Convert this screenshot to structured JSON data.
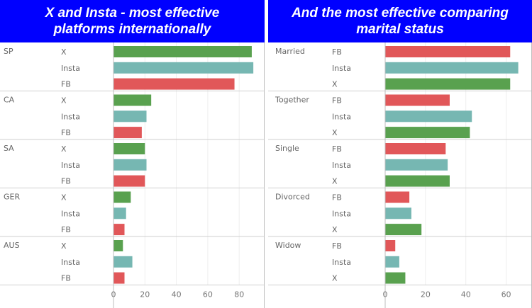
{
  "left_title": {
    "line1": "X and Insta - most effective",
    "line2": "platforms internationally"
  },
  "right_title": {
    "line1": "And the most effective comparing",
    "line2": "marital status"
  },
  "colors": {
    "X": "#59a14f",
    "Insta": "#76b7b2",
    "FB": "#e15759",
    "title_bg": "#0000ff"
  },
  "chart_data": [
    {
      "type": "bar",
      "orientation": "horizontal",
      "title": "X and Insta - most effective platforms internationally",
      "xlim": [
        0,
        93
      ],
      "ticks": [
        0,
        20,
        40,
        60,
        80
      ],
      "groups": [
        {
          "name": "SP",
          "bars": [
            {
              "label": "X",
              "value": 88
            },
            {
              "label": "Insta",
              "value": 89
            },
            {
              "label": "FB",
              "value": 77
            }
          ]
        },
        {
          "name": "CA",
          "bars": [
            {
              "label": "X",
              "value": 24
            },
            {
              "label": "Insta",
              "value": 21
            },
            {
              "label": "FB",
              "value": 18
            }
          ]
        },
        {
          "name": "SA",
          "bars": [
            {
              "label": "X",
              "value": 20
            },
            {
              "label": "Insta",
              "value": 21
            },
            {
              "label": "FB",
              "value": 20
            }
          ]
        },
        {
          "name": "GER",
          "bars": [
            {
              "label": "X",
              "value": 11
            },
            {
              "label": "Insta",
              "value": 8
            },
            {
              "label": "FB",
              "value": 7
            }
          ]
        },
        {
          "name": "AUS",
          "bars": [
            {
              "label": "X",
              "value": 6
            },
            {
              "label": "Insta",
              "value": 12
            },
            {
              "label": "FB",
              "value": 7
            }
          ]
        }
      ]
    },
    {
      "type": "bar",
      "orientation": "horizontal",
      "title": "And the most effective comparing marital status",
      "xlim": [
        0,
        70
      ],
      "ticks": [
        0,
        20,
        40,
        60
      ],
      "groups": [
        {
          "name": "Married",
          "bars": [
            {
              "label": "FB",
              "value": 62
            },
            {
              "label": "Insta",
              "value": 66
            },
            {
              "label": "X",
              "value": 62
            }
          ]
        },
        {
          "name": "Together",
          "bars": [
            {
              "label": "FB",
              "value": 32
            },
            {
              "label": "Insta",
              "value": 43
            },
            {
              "label": "X",
              "value": 42
            }
          ]
        },
        {
          "name": "Single",
          "bars": [
            {
              "label": "FB",
              "value": 30
            },
            {
              "label": "Insta",
              "value": 31
            },
            {
              "label": "X",
              "value": 32
            }
          ]
        },
        {
          "name": "Divorced",
          "bars": [
            {
              "label": "FB",
              "value": 12
            },
            {
              "label": "Insta",
              "value": 13
            },
            {
              "label": "X",
              "value": 18
            }
          ]
        },
        {
          "name": "Widow",
          "bars": [
            {
              "label": "FB",
              "value": 5
            },
            {
              "label": "Insta",
              "value": 7
            },
            {
              "label": "X",
              "value": 10
            }
          ]
        }
      ]
    }
  ]
}
